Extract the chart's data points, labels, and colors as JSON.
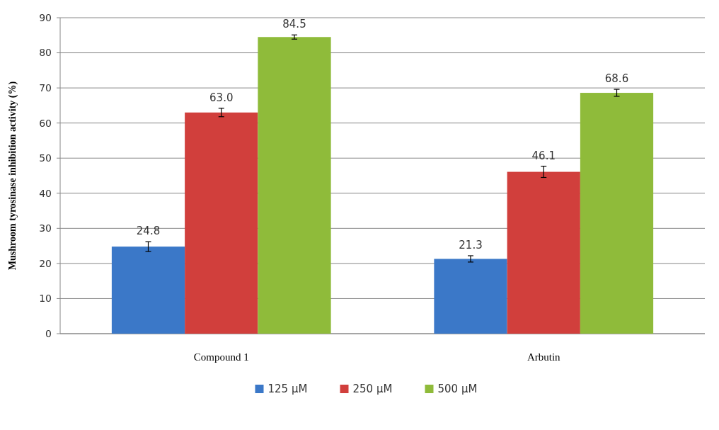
{
  "chart_data": {
    "type": "bar",
    "ylabel": "Mushroom tyrosinase inhibition activity (%)",
    "categories": [
      "Compound 1",
      "Arbutin"
    ],
    "series": [
      {
        "name": "125 μM",
        "color": "#3b78c8",
        "values": [
          24.8,
          21.3
        ],
        "value_labels": [
          "24.8",
          "21.3"
        ],
        "errors": [
          1.4,
          0.9
        ]
      },
      {
        "name": "250 μM",
        "color": "#d13f3c",
        "values": [
          63.0,
          46.1
        ],
        "value_labels": [
          "63.0",
          "46.1"
        ],
        "errors": [
          1.2,
          1.6
        ]
      },
      {
        "name": "500 μM",
        "color": "#8fbb3a",
        "values": [
          84.5,
          68.6
        ],
        "value_labels": [
          "84.5",
          "68.6"
        ],
        "errors": [
          0.6,
          1.0
        ]
      }
    ],
    "ylim": [
      0,
      90
    ],
    "yticks": [
      0,
      10,
      20,
      30,
      40,
      50,
      60,
      70,
      80,
      90
    ],
    "grid": "y",
    "legend": "bottom"
  }
}
